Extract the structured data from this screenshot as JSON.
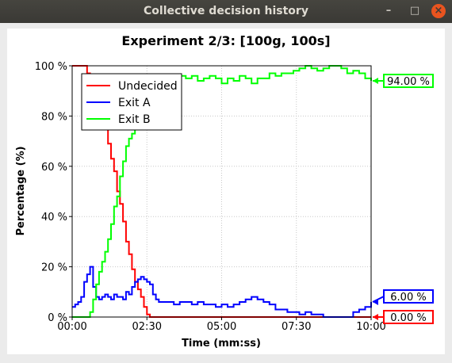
{
  "window": {
    "title": "Collective decision history",
    "buttons": {
      "minimize": "–",
      "maximize": "□",
      "close": "×"
    }
  },
  "chart_data": {
    "type": "line",
    "title": "Experiment 2/3: [100g, 100s]",
    "xlabel": "Time (mm:ss)",
    "ylabel": "Percentage (%)",
    "xlim": [
      0,
      600
    ],
    "ylim": [
      0,
      100
    ],
    "x_unit": "seconds",
    "x_ticks": [
      {
        "value": 0,
        "label": "00:00"
      },
      {
        "value": 150,
        "label": "02:30"
      },
      {
        "value": 300,
        "label": "05:00"
      },
      {
        "value": 450,
        "label": "07:30"
      },
      {
        "value": 600,
        "label": "10:00"
      }
    ],
    "y_ticks": [
      {
        "value": 0,
        "label": "0 %"
      },
      {
        "value": 20,
        "label": "20 %"
      },
      {
        "value": 40,
        "label": "40 %"
      },
      {
        "value": 60,
        "label": "60 %"
      },
      {
        "value": 80,
        "label": "80 %"
      },
      {
        "value": 100,
        "label": "100 %"
      }
    ],
    "grid": true,
    "legend_position": "top-left",
    "series": [
      {
        "name": "Undecided",
        "color": "#ff0000",
        "x": [
          0,
          6,
          12,
          18,
          24,
          30,
          36,
          42,
          48,
          54,
          60,
          66,
          72,
          78,
          84,
          90,
          96,
          102,
          108,
          114,
          120,
          126,
          132,
          138,
          144,
          150,
          156,
          162,
          168,
          600
        ],
        "values": [
          100,
          100,
          100,
          100,
          100,
          97,
          94,
          91,
          88,
          84,
          78,
          75,
          69,
          63,
          58,
          50,
          45,
          38,
          30,
          25,
          19,
          14,
          11,
          8,
          4,
          1,
          0,
          0,
          0,
          0
        ]
      },
      {
        "name": "Exit A",
        "color": "#0000ff",
        "x": [
          0,
          6,
          12,
          18,
          24,
          30,
          36,
          42,
          48,
          54,
          60,
          66,
          72,
          78,
          84,
          90,
          96,
          102,
          108,
          114,
          120,
          126,
          132,
          138,
          144,
          150,
          156,
          162,
          168,
          174,
          180,
          192,
          204,
          216,
          228,
          240,
          252,
          264,
          276,
          288,
          300,
          312,
          324,
          336,
          348,
          360,
          372,
          384,
          396,
          408,
          420,
          432,
          444,
          456,
          468,
          480,
          492,
          504,
          516,
          528,
          540,
          552,
          564,
          576,
          588,
          600
        ],
        "values": [
          4,
          5,
          6,
          8,
          14,
          17,
          20,
          12,
          8,
          7,
          8,
          9,
          8,
          7,
          9,
          8,
          8,
          7,
          10,
          9,
          12,
          14,
          15,
          16,
          15,
          14,
          13,
          9,
          7,
          6,
          6,
          6,
          5,
          6,
          6,
          5,
          6,
          5,
          5,
          4,
          5,
          4,
          5,
          6,
          7,
          8,
          7,
          6,
          5,
          3,
          3,
          2,
          2,
          1,
          2,
          1,
          1,
          0,
          0,
          0,
          0,
          0,
          2,
          3,
          4,
          6
        ]
      },
      {
        "name": "Exit B",
        "color": "#00ff00",
        "x": [
          0,
          6,
          12,
          18,
          24,
          30,
          36,
          42,
          48,
          54,
          60,
          66,
          72,
          78,
          84,
          90,
          96,
          102,
          108,
          114,
          120,
          126,
          132,
          138,
          144,
          150,
          156,
          162,
          168,
          174,
          180,
          192,
          204,
          216,
          228,
          240,
          252,
          264,
          276,
          288,
          300,
          312,
          324,
          336,
          348,
          360,
          372,
          384,
          396,
          408,
          420,
          432,
          444,
          456,
          468,
          480,
          492,
          504,
          516,
          528,
          540,
          552,
          564,
          576,
          588,
          600
        ],
        "values": [
          0,
          0,
          0,
          0,
          0,
          0,
          2,
          7,
          13,
          18,
          22,
          26,
          31,
          37,
          44,
          48,
          56,
          62,
          68,
          71,
          73,
          76,
          82,
          86,
          89,
          88,
          90,
          92,
          94,
          96,
          95,
          95,
          96,
          96,
          95,
          96,
          94,
          95,
          96,
          95,
          93,
          95,
          94,
          96,
          95,
          93,
          95,
          95,
          97,
          96,
          97,
          97,
          98,
          99,
          100,
          99,
          98,
          99,
          100,
          100,
          99,
          97,
          98,
          97,
          95,
          94
        ]
      }
    ],
    "end_labels": [
      {
        "series": "Exit B",
        "value": 94.0,
        "text": "94.00 %"
      },
      {
        "series": "Exit A",
        "value": 6.0,
        "text": "6.00 %"
      },
      {
        "series": "Undecided",
        "value": 0.0,
        "text": "0.00 %"
      }
    ]
  }
}
